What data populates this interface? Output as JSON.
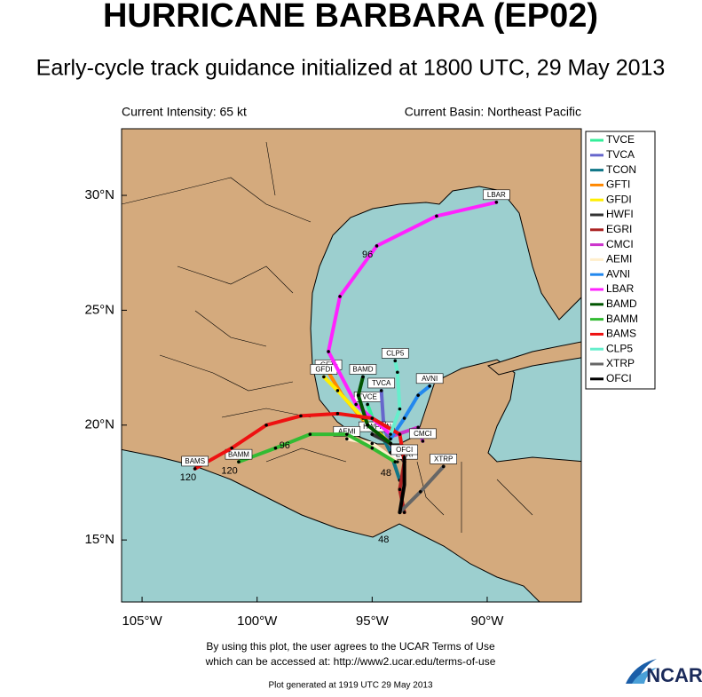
{
  "map": {
    "title": "HURRICANE BARBARA (EP02)",
    "subtitle": "Early-cycle track guidance initialized at 1800 UTC, 29 May 2013",
    "intensity": "Current Intensity: 65 kt",
    "basin": "Current Basin: Northeast Pacific",
    "xlim": [
      -105.89,
      -85.91
    ],
    "ylim": [
      12.3,
      32.9
    ],
    "xticks": [
      {
        "value": -105,
        "label": "105°W"
      },
      {
        "value": -100,
        "label": "100°W"
      },
      {
        "value": -95,
        "label": "95°W"
      },
      {
        "value": -90,
        "label": "90°W"
      }
    ],
    "yticks": [
      {
        "value": 15,
        "label": "15°N"
      },
      {
        "value": 20,
        "label": "20°N"
      },
      {
        "value": 25,
        "label": "25°N"
      },
      {
        "value": 30,
        "label": "30°N"
      }
    ],
    "tracks": [
      {
        "name": "TVCE",
        "color": "#33ee99",
        "lon": [
          -94.0,
          -94.8,
          -95.2
        ],
        "lat": [
          18.6,
          19.8,
          20.9
        ]
      },
      {
        "name": "TVCA",
        "color": "#6666cc",
        "lon": [
          -94.0,
          -94.5,
          -94.6
        ],
        "lat": [
          18.4,
          20.0,
          21.5
        ]
      },
      {
        "name": "TCON",
        "color": "#117788",
        "lon": [
          -93.8,
          -94.2,
          -94.6
        ],
        "lat": [
          17.6,
          18.8,
          19.6
        ]
      },
      {
        "name": "GFTI",
        "color": "#ff8800",
        "lon": [
          -94.0,
          -95.2,
          -96.3,
          -96.9
        ],
        "lat": [
          19.0,
          20.0,
          21.3,
          22.3
        ]
      },
      {
        "name": "GFDI",
        "color": "#ffee00",
        "lon": [
          -94.2,
          -95.4,
          -96.5,
          -97.1
        ],
        "lat": [
          19.2,
          20.3,
          21.5,
          22.1
        ]
      },
      {
        "name": "HWFI",
        "color": "#333333",
        "lon": [
          -93.6,
          -94.2,
          -95.0
        ],
        "lat": [
          18.4,
          19.2,
          19.6
        ]
      },
      {
        "name": "EGRI",
        "color": "#aa2222",
        "lon": [
          -93.6,
          -93.8,
          -93.6
        ],
        "lat": [
          16.2,
          17.2,
          18.4
        ]
      },
      {
        "name": "CMCI",
        "color": "#cc33cc",
        "lon": [
          -94.2,
          -93.0,
          -92.8
        ],
        "lat": [
          19.5,
          19.9,
          19.3
        ]
      },
      {
        "name": "AEMI",
        "color": "#ffeecc",
        "lon": [
          -93.9,
          -95.0,
          -96.1
        ],
        "lat": [
          18.4,
          19.2,
          19.4
        ]
      },
      {
        "name": "AVNI",
        "color": "#2288ee",
        "lon": [
          -94.2,
          -93.6,
          -93.0,
          -92.5
        ],
        "lat": [
          19.4,
          20.3,
          21.3,
          21.7
        ]
      },
      {
        "name": "LBAR",
        "color": "#ff22ff",
        "lon": [
          -94.2,
          -95.7,
          -96.9,
          -96.4,
          -94.8,
          -92.2,
          -89.6
        ],
        "lat": [
          19.6,
          20.9,
          23.2,
          25.6,
          27.8,
          29.1,
          29.7
        ]
      },
      {
        "name": "BAMD",
        "color": "#005500",
        "lon": [
          -94.2,
          -95.2,
          -95.6,
          -95.4
        ],
        "lat": [
          19.2,
          20.0,
          21.3,
          22.1
        ]
      },
      {
        "name": "BAMM",
        "color": "#33bb33",
        "lon": [
          -94.0,
          -95.0,
          -96.1,
          -97.7,
          -99.2,
          -100.8
        ],
        "lat": [
          18.4,
          19.0,
          19.6,
          19.6,
          19.0,
          18.4
        ]
      },
      {
        "name": "BAMS",
        "color": "#ee1111",
        "lon": [
          -93.6,
          -93.8,
          -95.0,
          -96.5,
          -98.1,
          -99.6,
          -101.1,
          -102.7
        ],
        "lat": [
          18.4,
          19.6,
          20.3,
          20.5,
          20.4,
          20.0,
          19.0,
          18.1
        ]
      },
      {
        "name": "CLP5",
        "color": "#66eecc",
        "lon": [
          -94.2,
          -93.8,
          -93.9,
          -94.0
        ],
        "lat": [
          19.6,
          20.7,
          22.3,
          22.8
        ]
      },
      {
        "name": "XTRP",
        "color": "#666666",
        "lon": [
          -93.8,
          -92.9,
          -91.9
        ],
        "lat": [
          16.2,
          17.1,
          18.2
        ]
      },
      {
        "name": "OFCI",
        "color": "#000000",
        "lon": [
          -93.8,
          -93.6,
          -93.6
        ],
        "lat": [
          16.2,
          17.4,
          18.6
        ]
      }
    ],
    "hour_labels": [
      {
        "text": "120",
        "lon": -103.0,
        "lat": 17.7
      },
      {
        "text": "120",
        "lon": -101.2,
        "lat": 18.0
      },
      {
        "text": "96",
        "lon": -95.2,
        "lat": 27.4
      },
      {
        "text": "96",
        "lon": -98.8,
        "lat": 19.1
      },
      {
        "text": "48",
        "lon": -94.4,
        "lat": 17.9
      },
      {
        "text": "48",
        "lon": -94.5,
        "lat": 15.0
      }
    ],
    "terms_line1": "By using this plot, the user agrees to the UCAR Terms of Use",
    "terms_line2": "which can be accessed at: http://www2.ucar.edu/terms-of-use",
    "generated": "Plot generated at 1919 UTC  29 May 2013",
    "logo": "NCAR"
  }
}
